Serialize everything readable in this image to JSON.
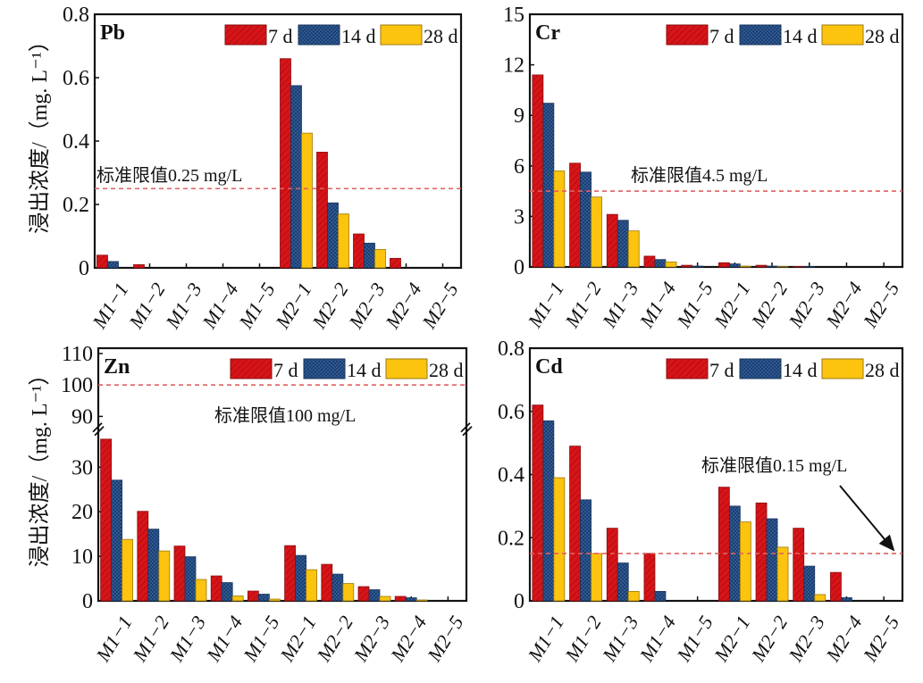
{
  "chart_data": [
    {
      "type": "bar",
      "title": "Pb",
      "ylabel": "浸出浓度/（mg. L⁻¹）",
      "categories": [
        "M1−1",
        "M1−2",
        "M1−3",
        "M1−4",
        "M1−5",
        "M2−1",
        "M2−2",
        "M2−3",
        "M2−4",
        "M2−5"
      ],
      "ylim": [
        0,
        0.8
      ],
      "yticks": [
        "0",
        "0.2",
        "0.4",
        "0.6",
        "0.8"
      ],
      "ytick_values": [
        0,
        0.2,
        0.4,
        0.6,
        0.8
      ],
      "series": [
        {
          "name": "7 d",
          "values": [
            0.04,
            0.01,
            0,
            0,
            0,
            0.66,
            0.365,
            0.107,
            0.03,
            0
          ]
        },
        {
          "name": "14 d",
          "values": [
            0.02,
            0,
            0,
            0,
            0,
            0.575,
            0.205,
            0.078,
            0,
            0
          ]
        },
        {
          "name": "28 d",
          "values": [
            0,
            0,
            0,
            0,
            0,
            0.425,
            0.17,
            0.058,
            0,
            0
          ]
        }
      ],
      "limit": {
        "value": 0.25,
        "label": "标准限值0.25 mg/L"
      }
    },
    {
      "type": "bar",
      "title": "Cr",
      "categories": [
        "M1−1",
        "M1−2",
        "M1−3",
        "M1−4",
        "M1−5",
        "M2−1",
        "M2−2",
        "M2−3",
        "M2−4",
        "M2−5"
      ],
      "ylim": [
        0,
        15
      ],
      "yticks": [
        "0",
        "3",
        "6",
        "9",
        "12",
        "15"
      ],
      "ytick_values": [
        0,
        3,
        6,
        9,
        12,
        15
      ],
      "series": [
        {
          "name": "7 d",
          "values": [
            11.4,
            6.16,
            3.12,
            0.64,
            0.1,
            0.25,
            0.1,
            0.03,
            0,
            0
          ]
        },
        {
          "name": "14 d",
          "values": [
            9.72,
            5.63,
            2.77,
            0.44,
            0.05,
            0.18,
            0.05,
            0.02,
            0,
            0
          ]
        },
        {
          "name": "28 d",
          "values": [
            5.7,
            4.15,
            2.14,
            0.3,
            0,
            0.05,
            0.02,
            0,
            0,
            0
          ]
        }
      ],
      "limit": {
        "value": 4.5,
        "label": "标准限值4.5 mg/L"
      }
    },
    {
      "type": "bar",
      "title": "Zn",
      "ylabel": "浸出浓度/（mg. L⁻¹）",
      "categories": [
        "M1−1",
        "M1−2",
        "M1−3",
        "M1−4",
        "M1−5",
        "M2−1",
        "M2−2",
        "M2−3",
        "M2−4",
        "M2−5"
      ],
      "ylim": [
        0,
        110
      ],
      "axis_break": [
        38,
        90
      ],
      "yticks": [
        "0",
        "10",
        "20",
        "30",
        "90",
        "100",
        "110"
      ],
      "ytick_values": [
        0,
        10,
        20,
        30,
        90,
        100,
        110
      ],
      "series": [
        {
          "name": "7 d",
          "values": [
            36.3,
            20.1,
            12.3,
            5.6,
            2.2,
            12.4,
            8.2,
            3.2,
            1.0,
            0
          ]
        },
        {
          "name": "14 d",
          "values": [
            27.1,
            16.1,
            9.9,
            4.1,
            1.5,
            10.2,
            6.0,
            2.5,
            0.7,
            0
          ]
        },
        {
          "name": "28 d",
          "values": [
            13.8,
            11.2,
            4.8,
            1.1,
            0.4,
            7.0,
            3.9,
            1.0,
            0.2,
            0
          ]
        }
      ],
      "limit": {
        "value": 100,
        "label": "标准限值100 mg/L"
      }
    },
    {
      "type": "bar",
      "title": "Cd",
      "categories": [
        "M1−1",
        "M1−2",
        "M1−3",
        "M1−4",
        "M1−5",
        "M2−1",
        "M2−2",
        "M2−3",
        "M2−4",
        "M2−5"
      ],
      "ylim": [
        0,
        0.8
      ],
      "yticks": [
        "0",
        "0.2",
        "0.4",
        "0.6",
        "0.8"
      ],
      "ytick_values": [
        0,
        0.2,
        0.4,
        0.6,
        0.8
      ],
      "series": [
        {
          "name": "7 d",
          "values": [
            0.62,
            0.49,
            0.23,
            0.15,
            0,
            0.36,
            0.31,
            0.23,
            0.09,
            0
          ]
        },
        {
          "name": "14 d",
          "values": [
            0.57,
            0.32,
            0.12,
            0.03,
            0,
            0.3,
            0.26,
            0.11,
            0.01,
            0
          ]
        },
        {
          "name": "28 d",
          "values": [
            0.39,
            0.15,
            0.03,
            0,
            0,
            0.25,
            0.17,
            0.02,
            0,
            0
          ]
        }
      ],
      "limit": {
        "value": 0.15,
        "label": "标准限值0.15 mg/L"
      }
    }
  ],
  "colors": {
    "7 d": "#d81418",
    "14 d": "#2e5a95",
    "28 d": "#fcc30f",
    "limit": "#e06060"
  }
}
